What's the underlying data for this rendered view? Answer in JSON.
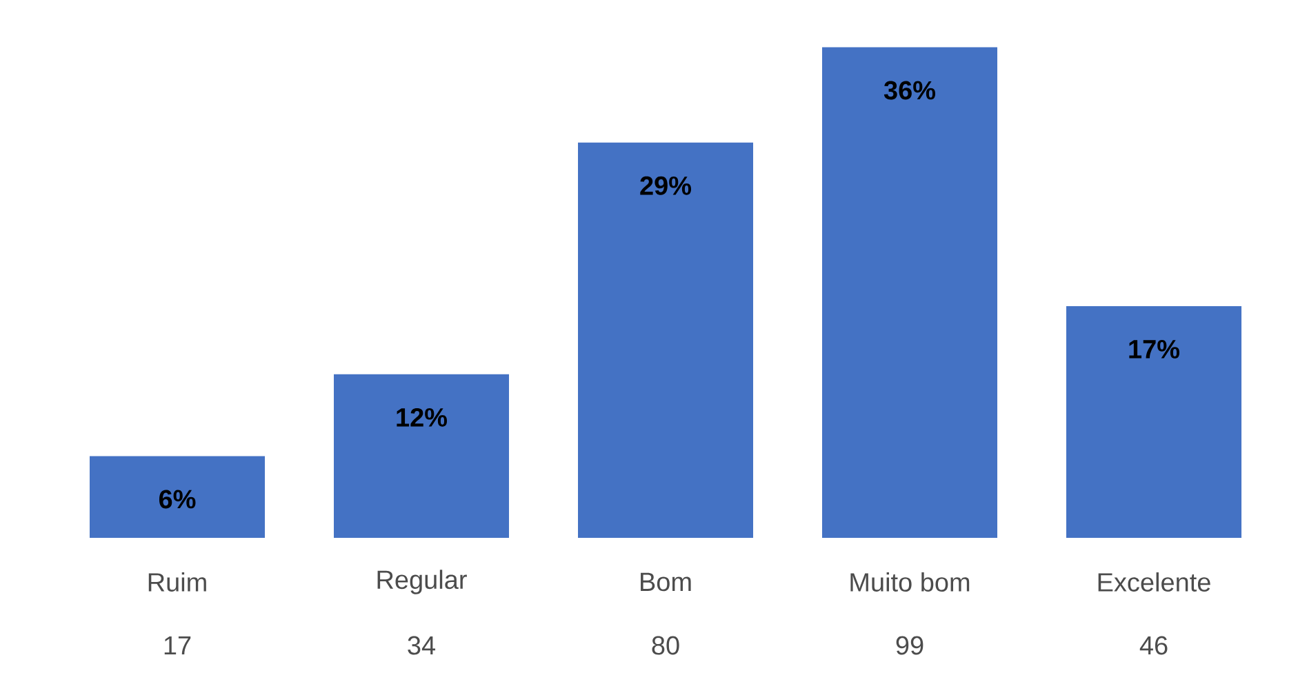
{
  "chart_data": {
    "type": "bar",
    "categories": [
      "Ruim",
      "Regular",
      "Bom",
      "Muito bom",
      "Excelente"
    ],
    "values": [
      6,
      12,
      29,
      36,
      17
    ],
    "value_labels": [
      "6%",
      "12%",
      "29%",
      "36%",
      "17%"
    ],
    "annotations": [
      "17",
      "34",
      "80",
      "99",
      "46"
    ],
    "color": "#4472c4"
  }
}
